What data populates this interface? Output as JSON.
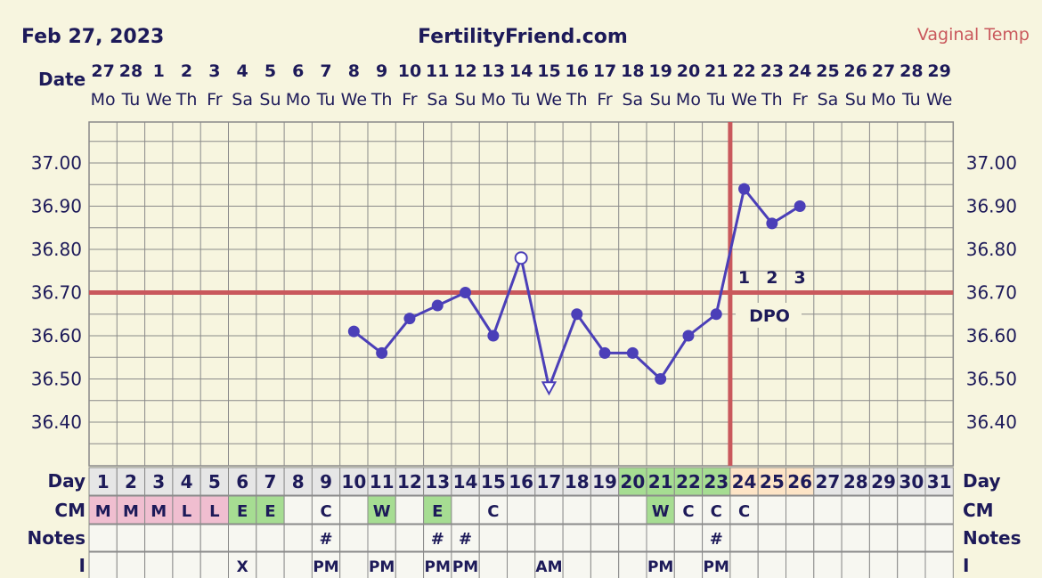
{
  "header": {
    "date": "Feb 27, 2023",
    "site": "FertilityFriend.com",
    "temp_type": "Vaginal Temp"
  },
  "labels": {
    "date_row": "Date",
    "day_row": "Day",
    "cm_row": "CM",
    "notes_row": "Notes",
    "i_row": "I",
    "dpo": "DPO"
  },
  "columns": {
    "dates": [
      "27",
      "28",
      "1",
      "2",
      "3",
      "4",
      "5",
      "6",
      "7",
      "8",
      "9",
      "10",
      "11",
      "12",
      "13",
      "14",
      "15",
      "16",
      "17",
      "18",
      "19",
      "20",
      "21",
      "22",
      "23",
      "24",
      "25",
      "26",
      "27",
      "28",
      "29"
    ],
    "weekdays": [
      "Mo",
      "Tu",
      "We",
      "Th",
      "Fr",
      "Sa",
      "Su",
      "Mo",
      "Tu",
      "We",
      "Th",
      "Fr",
      "Sa",
      "Su",
      "Mo",
      "Tu",
      "We",
      "Th",
      "Fr",
      "Sa",
      "Su",
      "Mo",
      "Tu",
      "We",
      "Th",
      "Fr",
      "Sa",
      "Su",
      "Mo",
      "Tu",
      "We"
    ],
    "cycle_days": [
      "1",
      "2",
      "3",
      "4",
      "5",
      "6",
      "7",
      "8",
      "9",
      "10",
      "11",
      "12",
      "13",
      "14",
      "15",
      "16",
      "17",
      "18",
      "19",
      "20",
      "21",
      "22",
      "23",
      "24",
      "25",
      "26",
      "27",
      "28",
      "29",
      "30",
      "31"
    ],
    "cm": [
      "M",
      "M",
      "M",
      "L",
      "L",
      "E",
      "E",
      "",
      "C",
      "",
      "W",
      "",
      "E",
      "",
      "C",
      "",
      "",
      "",
      "",
      "",
      "W",
      "C",
      "C",
      "C",
      "",
      "",
      "",
      "",
      "",
      "",
      ""
    ],
    "notes": [
      "",
      "",
      "",
      "",
      "",
      "",
      "",
      "",
      "#",
      "",
      "",
      "",
      "#",
      "#",
      "",
      "",
      "",
      "",
      "",
      "",
      "",
      "",
      "#",
      "",
      "",
      "",
      "",
      "",
      "",
      "",
      ""
    ],
    "intercourse": [
      "",
      "",
      "",
      "",
      "",
      "X",
      "",
      "",
      "PM",
      "",
      "PM",
      "",
      "PM",
      "PM",
      "",
      "",
      "AM",
      "",
      "",
      "",
      "PM",
      "",
      "PM",
      "",
      "",
      "",
      "",
      "",
      "",
      "",
      ""
    ]
  },
  "chart_data": {
    "type": "line",
    "x_label": "Day",
    "y_ticks": [
      "36.40",
      "36.50",
      "36.60",
      "36.70",
      "36.80",
      "36.90",
      "37.00"
    ],
    "ylim": [
      36.4,
      37.0
    ],
    "coverline": 36.7,
    "ovulation_day": 23,
    "dpo_labels": [
      {
        "day": 24,
        "text": "1"
      },
      {
        "day": 25,
        "text": "2"
      },
      {
        "day": 26,
        "text": "3"
      }
    ],
    "series": [
      {
        "points": [
          {
            "day": 10,
            "temp": 36.61
          },
          {
            "day": 11,
            "temp": 36.56
          },
          {
            "day": 12,
            "temp": 36.64
          },
          {
            "day": 13,
            "temp": 36.67
          },
          {
            "day": 14,
            "temp": 36.7
          },
          {
            "day": 15,
            "temp": 36.6
          },
          {
            "day": 16,
            "temp": 36.78,
            "marker": "open"
          },
          {
            "day": 17,
            "temp": 36.48,
            "marker": "triangle-down"
          },
          {
            "day": 18,
            "temp": 36.65
          },
          {
            "day": 19,
            "temp": 36.56
          },
          {
            "day": 20,
            "temp": 36.56
          },
          {
            "day": 21,
            "temp": 36.5
          },
          {
            "day": 22,
            "temp": 36.6
          },
          {
            "day": 23,
            "temp": 36.65
          },
          {
            "day": 24,
            "temp": 36.94
          },
          {
            "day": 25,
            "temp": 36.86
          },
          {
            "day": 26,
            "temp": 36.9
          }
        ]
      }
    ]
  },
  "colors": {
    "background": "#f7f5df",
    "grid": "#8a8a8a",
    "line": "#4b3fb8",
    "coverline": "#c9585c",
    "label": "#1d1a59",
    "temp_type": "#c9585c",
    "menses": "#f0bed0",
    "fertile": "#a6dd92",
    "post_ovulation": "#fde4c6",
    "day_default": "#e6e6e6",
    "row_default": "#f7f7f1"
  }
}
